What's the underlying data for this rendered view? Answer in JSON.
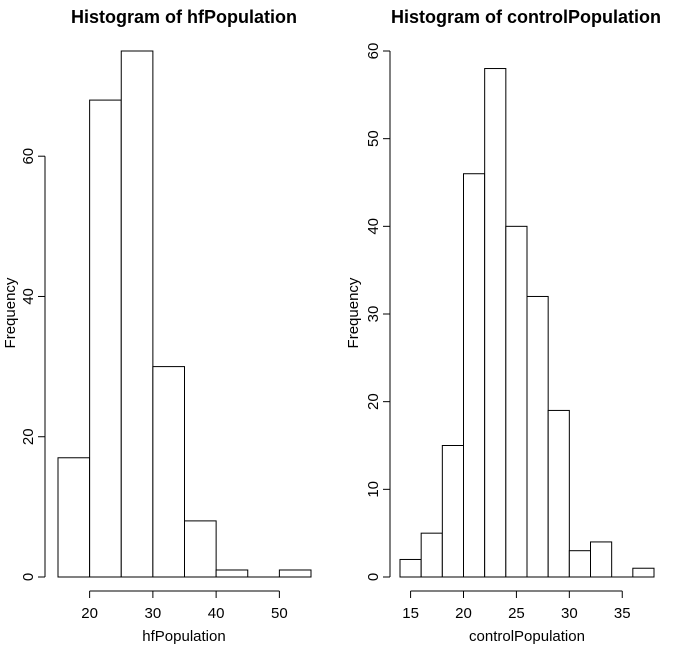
{
  "chart_data": [
    {
      "type": "bar",
      "title": "Histogram of hfPopulation",
      "xlabel": "hfPopulation",
      "ylabel": "Frequency",
      "bin_edges": [
        15,
        20,
        25,
        30,
        35,
        40,
        45,
        50,
        55
      ],
      "values": [
        17,
        68,
        75,
        30,
        8,
        1,
        0,
        1
      ],
      "xlim": [
        15,
        55
      ],
      "ylim": [
        0,
        75
      ],
      "x_ticks": [
        20,
        30,
        40,
        50
      ],
      "y_ticks": [
        0,
        20,
        40,
        60
      ],
      "grid": false,
      "legend": "none"
    },
    {
      "type": "bar",
      "title": "Histogram of controlPopulation",
      "xlabel": "controlPopulation",
      "ylabel": "Frequency",
      "bin_edges": [
        14,
        16,
        18,
        20,
        22,
        24,
        26,
        28,
        30,
        32,
        34,
        36,
        38
      ],
      "values": [
        2,
        5,
        15,
        46,
        58,
        40,
        32,
        19,
        3,
        4,
        0,
        1
      ],
      "xlim": [
        14,
        38
      ],
      "ylim": [
        0,
        60
      ],
      "x_ticks": [
        15,
        20,
        25,
        30,
        35
      ],
      "y_ticks": [
        0,
        10,
        20,
        30,
        40,
        50,
        60
      ],
      "grid": false,
      "legend": "none"
    }
  ]
}
